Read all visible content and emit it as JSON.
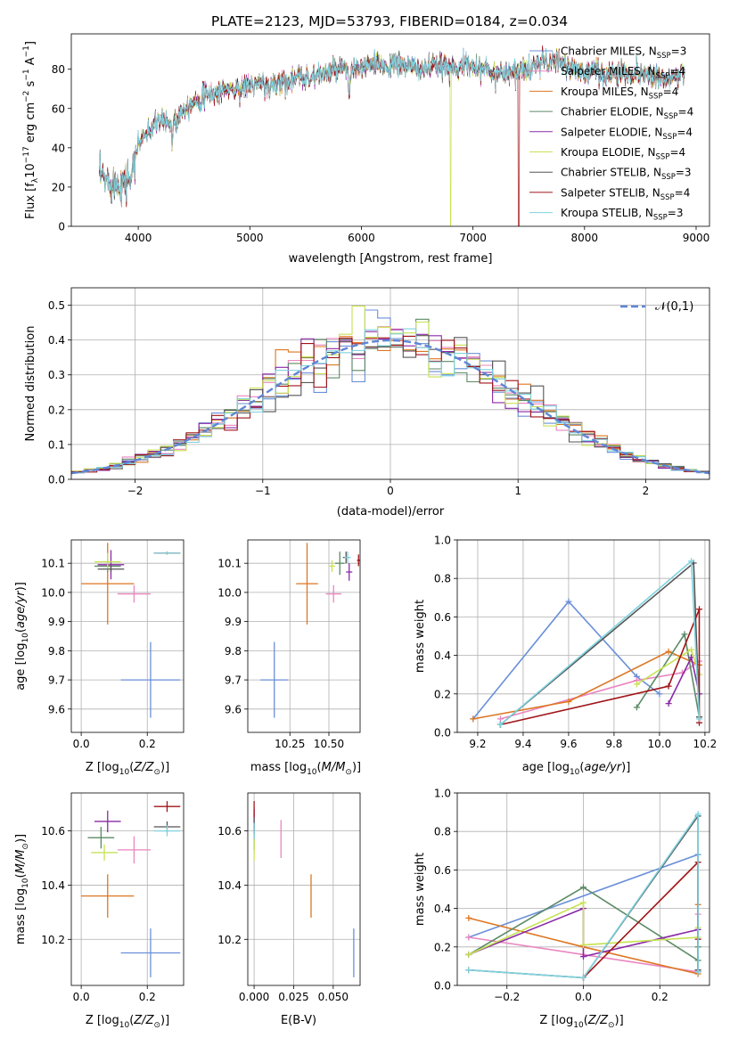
{
  "figure_title": "PLATE=2123, MJD=53793, FIBERID=0184, z=0.034",
  "colors": {
    "Chabrier MILES": "#6a8fd9",
    "Salpeter MILES": "#ea86c0",
    "Kroupa MILES": "#dd7722",
    "Chabrier ELODIE": "#5c8a65",
    "Salpeter ELODIE": "#8a2aa6",
    "Kroupa ELODIE": "#c7e253",
    "Chabrier STELIB": "#555555",
    "Salpeter STELIB": "#a01418",
    "Kroupa STELIB": "#7fd3df"
  },
  "chart_data": [
    {
      "id": "spectrum",
      "type": "line",
      "title": "PLATE=2123, MJD=53793, FIBERID=0184, z=0.034",
      "xlabel": "wavelength [Angstrom, rest frame]",
      "ylabel": "Flux [f_λ 10^-17 erg cm^-2 s^-1 A^-1]",
      "xlim": [
        3400,
        9120
      ],
      "ylim": [
        0,
        98
      ],
      "xticks": [
        "4000",
        "5000",
        "6000",
        "7000",
        "8000",
        "9000"
      ],
      "yticks": [
        "0",
        "20",
        "40",
        "60",
        "80"
      ],
      "grid": false,
      "legend_position": "top-right",
      "legend": [
        {
          "model": "Chabrier MILES",
          "label": "Chabrier MILES, N",
          "sub": "SSP",
          "suffix": "=3"
        },
        {
          "model": "Salpeter MILES",
          "label": "Salpeter MILES, N",
          "sub": "SSP",
          "suffix": "=4"
        },
        {
          "model": "Kroupa MILES",
          "label": "Kroupa MILES, N",
          "sub": "SSP",
          "suffix": "=4"
        },
        {
          "model": "Chabrier ELODIE",
          "label": "Chabrier ELODIE, N",
          "sub": "SSP",
          "suffix": "=4"
        },
        {
          "model": "Salpeter ELODIE",
          "label": "Salpeter ELODIE, N",
          "sub": "SSP",
          "suffix": "=4"
        },
        {
          "model": "Kroupa ELODIE",
          "label": "Kroupa ELODIE, N",
          "sub": "SSP",
          "suffix": "=4"
        },
        {
          "model": "Chabrier STELIB",
          "label": "Chabrier STELIB, N",
          "sub": "SSP",
          "suffix": "=3"
        },
        {
          "model": "Salpeter STELIB",
          "label": "Salpeter STELIB, N",
          "sub": "SSP",
          "suffix": "=4"
        },
        {
          "model": "Kroupa STELIB",
          "label": "Kroupa STELIB, N",
          "sub": "SSP",
          "suffix": "=3"
        }
      ],
      "continuum_nodes": [
        [
          3650,
          26
        ],
        [
          3700,
          24
        ],
        [
          3800,
          22
        ],
        [
          3900,
          23
        ],
        [
          4000,
          42
        ],
        [
          4100,
          50
        ],
        [
          4200,
          54
        ],
        [
          4300,
          52
        ],
        [
          4400,
          60
        ],
        [
          4500,
          64
        ],
        [
          4600,
          66
        ],
        [
          4700,
          68
        ],
        [
          4800,
          70
        ],
        [
          4900,
          70
        ],
        [
          5000,
          72
        ],
        [
          5100,
          72
        ],
        [
          5200,
          73
        ],
        [
          5300,
          74
        ],
        [
          5400,
          75
        ],
        [
          5500,
          76
        ],
        [
          5600,
          77
        ],
        [
          5700,
          78
        ],
        [
          5800,
          80
        ],
        [
          5900,
          79
        ],
        [
          6000,
          81
        ],
        [
          6100,
          82
        ],
        [
          6200,
          82
        ],
        [
          6300,
          82
        ],
        [
          6400,
          82
        ],
        [
          6500,
          80
        ],
        [
          6600,
          81
        ],
        [
          6700,
          81
        ],
        [
          6800,
          82
        ],
        [
          6900,
          81
        ],
        [
          7000,
          82
        ],
        [
          7100,
          80
        ],
        [
          7200,
          78
        ],
        [
          7300,
          79
        ],
        [
          7400,
          79
        ],
        [
          7500,
          80
        ],
        [
          7600,
          84
        ],
        [
          7700,
          84
        ],
        [
          7800,
          83
        ],
        [
          7900,
          80
        ],
        [
          8000,
          78
        ],
        [
          8100,
          79
        ],
        [
          8200,
          77
        ],
        [
          8300,
          78
        ],
        [
          8400,
          78
        ],
        [
          8500,
          78
        ],
        [
          8600,
          77
        ],
        [
          8700,
          76
        ],
        [
          8800,
          76
        ],
        [
          8900,
          77
        ]
      ],
      "absorption_features": [
        [
          3934,
          8,
          10
        ],
        [
          3968,
          8,
          8
        ],
        [
          4101,
          6,
          8
        ],
        [
          4304,
          10,
          6
        ],
        [
          4340,
          6,
          6
        ],
        [
          4861,
          4,
          4
        ],
        [
          5175,
          8,
          10
        ],
        [
          5270,
          3,
          3
        ],
        [
          5892,
          14,
          8
        ],
        [
          6563,
          4,
          4
        ],
        [
          6870,
          5,
          6
        ],
        [
          7600,
          4,
          6
        ],
        [
          8498,
          3,
          3
        ],
        [
          8542,
          4,
          3
        ],
        [
          8662,
          4,
          3
        ]
      ],
      "dropouts": [
        {
          "model": "Kroupa ELODIE",
          "x_min": 3900,
          "x_max": 6800
        },
        {
          "model": "Salpeter STELIB",
          "x_min": 3650,
          "x_max": 7410
        }
      ]
    },
    {
      "id": "residuals",
      "type": "histogram",
      "xlabel": "(data-model)/error",
      "ylabel": "Normed distribution",
      "xlim": [
        -2.5,
        2.5
      ],
      "ylim": [
        0,
        0.55
      ],
      "xticks": [
        "−2",
        "−1",
        "0",
        "1",
        "2"
      ],
      "yticks": [
        "0.0",
        "0.1",
        "0.2",
        "0.3",
        "0.4",
        "0.5"
      ],
      "grid": true,
      "legend_position": "top-right",
      "reference_curve": {
        "label": "𝒩(0,1)",
        "mean": 0,
        "sigma": 1,
        "color": "#5f86d6"
      },
      "bin_width": 0.1,
      "series_note": "one step histogram per model, approximately normal"
    },
    {
      "id": "age_vs_Z",
      "type": "errorbar",
      "xlabel": "Z [log10(Z/Z⊙)]",
      "ylabel": "age  [log10(age/yr)]",
      "xlim": [
        -0.03,
        0.31
      ],
      "ylim": [
        9.52,
        10.18
      ],
      "xticks": [
        "0.0",
        "0.2"
      ],
      "yticks": [
        "9.6",
        "9.7",
        "9.8",
        "9.9",
        "10.0",
        "10.1"
      ],
      "grid": true,
      "points": [
        {
          "model": "Chabrier MILES",
          "x": 0.21,
          "xerr": 0.09,
          "y": 9.7,
          "yerr": 0.13
        },
        {
          "model": "Salpeter MILES",
          "x": 0.16,
          "xerr": 0.05,
          "y": 9.995,
          "yerr": 0.03
        },
        {
          "model": "Kroupa MILES",
          "x": 0.08,
          "xerr": 0.08,
          "y": 10.03,
          "yerr": 0.14
        },
        {
          "model": "Chabrier ELODIE",
          "x": 0.08,
          "xerr": 0.04,
          "y": 10.09,
          "yerr": 0.02
        },
        {
          "model": "Salpeter ELODIE",
          "x": 0.09,
          "xerr": 0.04,
          "y": 10.095,
          "yerr": 0.05
        },
        {
          "model": "Kroupa ELODIE",
          "x": 0.08,
          "xerr": 0.04,
          "y": 10.105,
          "yerr": 0.03
        },
        {
          "model": "Chabrier STELIB",
          "x": 0.09,
          "xerr": 0.04,
          "y": 10.08,
          "yerr": 0.01
        },
        {
          "model": "Salpeter STELIB",
          "x": 0.26,
          "xerr": 0.04,
          "y": 10.135,
          "yerr": 0.005
        },
        {
          "model": "Kroupa STELIB",
          "x": 0.26,
          "xerr": 0.04,
          "y": 10.135,
          "yerr": 0.006
        }
      ]
    },
    {
      "id": "age_vs_mass",
      "type": "errorbar",
      "xlabel": "mass [log10(M/M⊙)]",
      "ylabel": "",
      "xlim": [
        9.98,
        10.7
      ],
      "ylim": [
        9.52,
        10.18
      ],
      "xticks": [
        "10.25",
        "10.50"
      ],
      "yticks": [
        "9.6",
        "9.7",
        "9.8",
        "9.9",
        "10.0",
        "10.1"
      ],
      "grid": true,
      "points": [
        {
          "model": "Chabrier MILES",
          "x": 10.15,
          "xerr": 0.09,
          "y": 9.7,
          "yerr": 0.13
        },
        {
          "model": "Salpeter MILES",
          "x": 10.53,
          "xerr": 0.05,
          "y": 9.995,
          "yerr": 0.03
        },
        {
          "model": "Kroupa MILES",
          "x": 10.36,
          "xerr": 0.07,
          "y": 10.03,
          "yerr": 0.14
        },
        {
          "model": "Chabrier ELODIE",
          "x": 10.57,
          "xerr": 0.03,
          "y": 10.1,
          "yerr": 0.04
        },
        {
          "model": "Salpeter ELODIE",
          "x": 10.63,
          "xerr": 0.02,
          "y": 10.07,
          "yerr": 0.03
        },
        {
          "model": "Kroupa ELODIE",
          "x": 10.52,
          "xerr": 0.02,
          "y": 10.09,
          "yerr": 0.02
        },
        {
          "model": "Chabrier STELIB",
          "x": 10.61,
          "xerr": 0.02,
          "y": 10.12,
          "yerr": 0.02
        },
        {
          "model": "Salpeter STELIB",
          "x": 10.69,
          "xerr": 0.01,
          "y": 10.11,
          "yerr": 0.02
        },
        {
          "model": "Kroupa STELIB",
          "x": 10.62,
          "xerr": 0.02,
          "y": 10.12,
          "yerr": 0.02
        }
      ]
    },
    {
      "id": "weight_vs_age",
      "type": "line",
      "xlabel": "age  [log10(age/yr)]",
      "ylabel": "mass weight",
      "xlim": [
        9.11,
        10.22
      ],
      "ylim": [
        0,
        1.0
      ],
      "xticks": [
        "9.2",
        "9.4",
        "9.6",
        "9.8",
        "10.0",
        "10.2"
      ],
      "yticks": [
        "0.0",
        "0.2",
        "0.4",
        "0.6",
        "0.8",
        "1.0"
      ],
      "grid": true,
      "series": [
        {
          "model": "Chabrier MILES",
          "x": [
            9.18,
            9.6,
            9.9,
            10.0
          ],
          "y": [
            0.07,
            0.68,
            0.29,
            0.2
          ]
        },
        {
          "model": "Salpeter MILES",
          "x": [
            9.3,
            9.9,
            10.1,
            10.175
          ],
          "y": [
            0.07,
            0.27,
            0.31,
            0.37
          ]
        },
        {
          "model": "Kroupa MILES",
          "x": [
            9.18,
            9.6,
            10.04,
            10.175
          ],
          "y": [
            0.07,
            0.16,
            0.42,
            0.35
          ]
        },
        {
          "model": "Chabrier ELODIE",
          "x": [
            9.9,
            10.11,
            10.175
          ],
          "y": [
            0.13,
            0.51,
            0.08
          ]
        },
        {
          "model": "Salpeter ELODIE",
          "x": [
            10.04,
            10.14,
            10.175
          ],
          "y": [
            0.15,
            0.39,
            0.2
          ]
        },
        {
          "model": "Kroupa ELODIE",
          "x": [
            9.9,
            10.14,
            10.175
          ],
          "y": [
            0.25,
            0.43,
            0.3
          ]
        },
        {
          "model": "Chabrier STELIB",
          "x": [
            9.3,
            10.15,
            10.175
          ],
          "y": [
            0.04,
            0.88,
            0.08
          ]
        },
        {
          "model": "Salpeter STELIB",
          "x": [
            9.3,
            10.04,
            10.175,
            10.175
          ],
          "y": [
            0.04,
            0.24,
            0.64,
            0.05
          ]
        },
        {
          "model": "Kroupa STELIB",
          "x": [
            9.3,
            10.14,
            10.175
          ],
          "y": [
            0.04,
            0.89,
            0.07
          ]
        }
      ]
    },
    {
      "id": "mass_vs_Z",
      "type": "errorbar",
      "xlabel": "Z [log10(Z/Z⊙)]",
      "ylabel": "mass [log10(M/M⊙)]",
      "xlim": [
        -0.03,
        0.31
      ],
      "ylim": [
        10.03,
        10.74
      ],
      "xticks": [
        "0.0",
        "0.2"
      ],
      "yticks": [
        "10.2",
        "10.4",
        "10.6"
      ],
      "grid": true,
      "points": [
        {
          "model": "Chabrier MILES",
          "x": 0.21,
          "xerr": 0.09,
          "y": 10.15,
          "yerr": 0.09
        },
        {
          "model": "Salpeter MILES",
          "x": 0.16,
          "xerr": 0.05,
          "y": 10.53,
          "yerr": 0.05
        },
        {
          "model": "Kroupa MILES",
          "x": 0.08,
          "xerr": 0.08,
          "y": 10.36,
          "yerr": 0.08
        },
        {
          "model": "Chabrier ELODIE",
          "x": 0.06,
          "xerr": 0.04,
          "y": 10.575,
          "yerr": 0.04
        },
        {
          "model": "Salpeter ELODIE",
          "x": 0.08,
          "xerr": 0.04,
          "y": 10.635,
          "yerr": 0.04
        },
        {
          "model": "Kroupa ELODIE",
          "x": 0.07,
          "xerr": 0.04,
          "y": 10.52,
          "yerr": 0.03
        },
        {
          "model": "Chabrier STELIB",
          "x": 0.26,
          "xerr": 0.04,
          "y": 10.615,
          "yerr": 0.02
        },
        {
          "model": "Salpeter STELIB",
          "x": 0.26,
          "xerr": 0.04,
          "y": 10.69,
          "yerr": 0.02
        },
        {
          "model": "Kroupa STELIB",
          "x": 0.26,
          "xerr": 0.04,
          "y": 10.6,
          "yerr": 0.02
        }
      ]
    },
    {
      "id": "mass_vs_ebv",
      "type": "errorbar",
      "xlabel": "E(B-V)",
      "ylabel": "",
      "xlim": [
        -0.004,
        0.067
      ],
      "ylim": [
        10.03,
        10.74
      ],
      "xticks": [
        "0.000",
        "0.025",
        "0.050"
      ],
      "yticks": [
        "10.2",
        "10.4",
        "10.6"
      ],
      "grid": true,
      "points": [
        {
          "model": "Chabrier MILES",
          "x": 0.063,
          "xerr": 0.0,
          "y": 10.15,
          "yerr": 0.09
        },
        {
          "model": "Salpeter MILES",
          "x": 0.017,
          "xerr": 0.0,
          "y": 10.57,
          "yerr": 0.07
        },
        {
          "model": "Kroupa MILES",
          "x": 0.036,
          "xerr": 0.0,
          "y": 10.36,
          "yerr": 0.08
        },
        {
          "model": "Chabrier ELODIE",
          "x": 0.0,
          "xerr": 0.0,
          "y": 10.58,
          "yerr": 0.05
        },
        {
          "model": "Salpeter ELODIE",
          "x": 0.0,
          "xerr": 0.0,
          "y": 10.64,
          "yerr": 0.04
        },
        {
          "model": "Kroupa ELODIE",
          "x": 0.0,
          "xerr": 0.0,
          "y": 10.53,
          "yerr": 0.04
        },
        {
          "model": "Chabrier STELIB",
          "x": 0.0,
          "xerr": 0.0,
          "y": 10.62,
          "yerr": 0.03
        },
        {
          "model": "Salpeter STELIB",
          "x": 0.0,
          "xerr": 0.0,
          "y": 10.68,
          "yerr": 0.03
        },
        {
          "model": "Kroupa STELIB",
          "x": 0.0,
          "xerr": 0.0,
          "y": 10.6,
          "yerr": 0.03
        }
      ]
    },
    {
      "id": "weight_vs_Z",
      "type": "line",
      "xlabel": "Z [log10(Z/Z⊙)]",
      "ylabel": "mass weight",
      "xlim": [
        -0.33,
        0.33
      ],
      "ylim": [
        0,
        1.0
      ],
      "xticks": [
        "−0.2",
        "0.0",
        "0.2"
      ],
      "yticks": [
        "0.0",
        "0.2",
        "0.4",
        "0.6",
        "0.8",
        "1.0"
      ],
      "grid": true,
      "series": [
        {
          "model": "Chabrier MILES",
          "x": [
            -0.3,
            0.3,
            0.3
          ],
          "y": [
            0.25,
            0.68,
            0.07
          ]
        },
        {
          "model": "Salpeter MILES",
          "x": [
            -0.3,
            0.0,
            0.3,
            0.3
          ],
          "y": [
            0.25,
            0.16,
            0.07,
            0.37
          ]
        },
        {
          "model": "Kroupa MILES",
          "x": [
            -0.3,
            0.0,
            0.3,
            0.3
          ],
          "y": [
            0.35,
            0.2,
            0.06,
            0.42
          ]
        },
        {
          "model": "Chabrier ELODIE",
          "x": [
            -0.3,
            0.0,
            0.3,
            0.3
          ],
          "y": [
            0.16,
            0.51,
            0.13,
            0.2
          ]
        },
        {
          "model": "Salpeter ELODIE",
          "x": [
            -0.3,
            0.0,
            0.0,
            0.3,
            0.3
          ],
          "y": [
            0.16,
            0.4,
            0.15,
            0.29,
            0.08
          ]
        },
        {
          "model": "Kroupa ELODIE",
          "x": [
            -0.3,
            0.0,
            0.0,
            0.3,
            0.3
          ],
          "y": [
            0.16,
            0.43,
            0.21,
            0.25,
            0.3
          ]
        },
        {
          "model": "Chabrier STELIB",
          "x": [
            -0.3,
            0.0,
            0.3,
            0.3
          ],
          "y": [
            0.08,
            0.04,
            0.88,
            0.08
          ]
        },
        {
          "model": "Salpeter STELIB",
          "x": [
            0.0,
            0.3,
            0.3
          ],
          "y": [
            0.04,
            0.64,
            0.24
          ]
        },
        {
          "model": "Kroupa STELIB",
          "x": [
            -0.3,
            0.0,
            0.3,
            0.3
          ],
          "y": [
            0.08,
            0.04,
            0.89,
            0.07
          ]
        }
      ]
    }
  ]
}
